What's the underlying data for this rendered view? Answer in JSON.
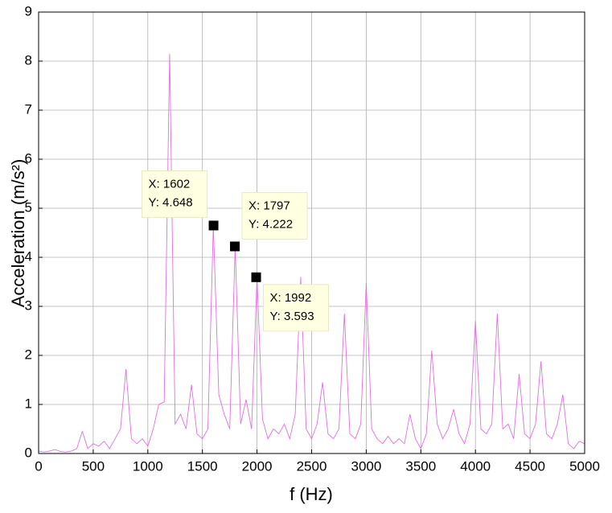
{
  "chart_data": {
    "type": "line",
    "xlabel": "f  (Hz)",
    "ylabel": "Acceleration (m/s²)",
    "xlim": [
      0,
      5000
    ],
    "ylim": [
      0,
      9
    ],
    "xticks": [
      0,
      500,
      1000,
      1500,
      2000,
      2500,
      3000,
      3500,
      4000,
      4500,
      5000
    ],
    "yticks": [
      0,
      1,
      2,
      3,
      4,
      5,
      6,
      7,
      8,
      9
    ],
    "grid": true,
    "series": [
      {
        "color": "#e070e0",
        "x": [
          0,
          50,
          100,
          150,
          200,
          250,
          300,
          350,
          400,
          450,
          500,
          550,
          600,
          650,
          700,
          750,
          800,
          850,
          900,
          950,
          1000,
          1050,
          1100,
          1150,
          1200,
          1250,
          1300,
          1350,
          1400,
          1450,
          1500,
          1550,
          1600,
          1650,
          1700,
          1750,
          1800,
          1850,
          1900,
          1950,
          2000,
          2050,
          2100,
          2150,
          2200,
          2250,
          2300,
          2350,
          2400,
          2450,
          2500,
          2550,
          2600,
          2650,
          2700,
          2750,
          2800,
          2850,
          2900,
          2950,
          3000,
          3050,
          3100,
          3150,
          3200,
          3250,
          3300,
          3350,
          3400,
          3450,
          3500,
          3550,
          3600,
          3650,
          3700,
          3750,
          3800,
          3850,
          3900,
          3950,
          4000,
          4050,
          4100,
          4150,
          4200,
          4250,
          4300,
          4350,
          4400,
          4450,
          4500,
          4550,
          4600,
          4650,
          4700,
          4750,
          4800,
          4850,
          4900,
          4950,
          5000
        ],
        "values": [
          0.05,
          0.03,
          0.05,
          0.08,
          0.04,
          0.03,
          0.05,
          0.1,
          0.45,
          0.1,
          0.2,
          0.15,
          0.25,
          0.1,
          0.3,
          0.5,
          1.72,
          0.3,
          0.2,
          0.3,
          0.15,
          0.5,
          1.0,
          1.05,
          8.15,
          0.6,
          0.8,
          0.5,
          1.4,
          0.4,
          0.3,
          0.5,
          4.65,
          1.2,
          0.8,
          0.5,
          4.22,
          0.6,
          1.1,
          0.5,
          3.59,
          0.7,
          0.3,
          0.5,
          0.4,
          0.6,
          0.3,
          0.8,
          3.6,
          0.5,
          0.3,
          0.6,
          1.45,
          0.4,
          0.3,
          0.5,
          2.85,
          0.4,
          0.3,
          0.6,
          3.48,
          0.5,
          0.3,
          0.2,
          0.35,
          0.2,
          0.3,
          0.2,
          0.8,
          0.3,
          0.1,
          0.4,
          2.1,
          0.6,
          0.3,
          0.5,
          0.9,
          0.4,
          0.2,
          0.6,
          2.7,
          0.5,
          0.4,
          0.6,
          2.85,
          0.5,
          0.6,
          0.3,
          1.62,
          0.4,
          0.3,
          0.6,
          1.88,
          0.4,
          0.3,
          0.6,
          1.2,
          0.2,
          0.1,
          0.25,
          0.2
        ]
      }
    ],
    "annotations": [
      {
        "x": 1602,
        "y": 4.648,
        "text": [
          "X: 1602",
          "Y: 4.648"
        ]
      },
      {
        "x": 1797,
        "y": 4.222,
        "text": [
          "X: 1797",
          "Y: 4.222"
        ]
      },
      {
        "x": 1992,
        "y": 3.593,
        "text": [
          "X: 1992",
          "Y: 3.593"
        ]
      }
    ]
  }
}
